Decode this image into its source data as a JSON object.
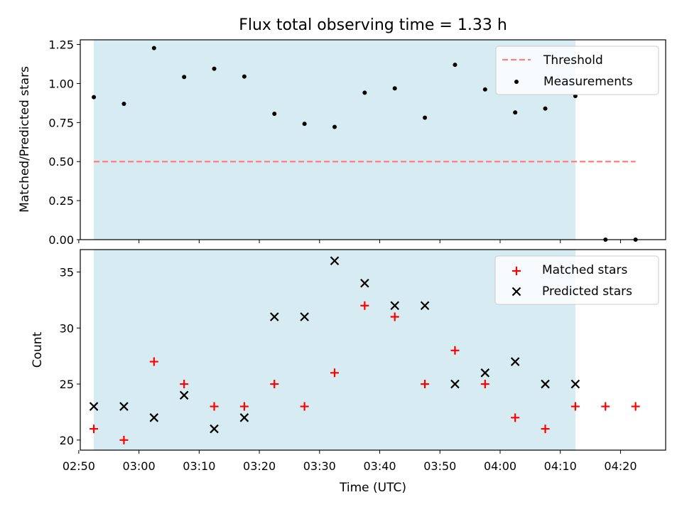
{
  "chart_data": [
    {
      "type": "scatter",
      "title": "Flux total observing time = 1.33 h",
      "ylabel": "Matched/Predicted stars",
      "xlabel": "",
      "ylim": [
        0,
        1.28
      ],
      "yticks": [
        0.0,
        0.25,
        0.5,
        0.75,
        1.0,
        1.25
      ],
      "ytick_labels": [
        "0.00",
        "0.25",
        "0.50",
        "0.75",
        "1.00",
        "1.25"
      ],
      "shaded_interval": [
        "02:52:30",
        "04:12:30"
      ],
      "legend": "upper right",
      "series": [
        {
          "name": "Threshold",
          "kind": "dashed-line",
          "color": "#ff7f7f",
          "x": [
            "02:52:30",
            "04:22:30"
          ],
          "y": [
            0.5,
            0.5
          ]
        },
        {
          "name": "Measurements",
          "kind": "points",
          "color": "#000000",
          "x": [
            "02:52:30",
            "02:57:30",
            "03:02:30",
            "03:07:30",
            "03:12:30",
            "03:17:30",
            "03:22:30",
            "03:27:30",
            "03:32:30",
            "03:37:30",
            "03:42:30",
            "03:47:30",
            "03:52:30",
            "03:57:30",
            "04:02:30",
            "04:07:30",
            "04:12:30",
            "04:17:30",
            "04:22:30"
          ],
          "y": [
            0.913,
            0.87,
            1.227,
            1.042,
            1.095,
            1.045,
            0.806,
            0.742,
            0.722,
            0.941,
            0.969,
            0.781,
            1.12,
            0.962,
            0.815,
            0.84,
            0.92,
            0.0,
            0.0
          ]
        }
      ]
    },
    {
      "type": "scatter",
      "title": "",
      "xlabel": "Time (UTC)",
      "ylabel": "Count",
      "ylim": [
        19.1,
        37.0
      ],
      "yticks": [
        20,
        25,
        30,
        35
      ],
      "ytick_labels": [
        "20",
        "25",
        "30",
        "35"
      ],
      "xlim": [
        "02:50:15",
        "04:27:30"
      ],
      "xticks": [
        "02:50",
        "03:00",
        "03:10",
        "03:20",
        "03:30",
        "03:40",
        "03:50",
        "04:00",
        "04:10",
        "04:20"
      ],
      "shaded_interval": [
        "02:52:30",
        "04:12:30"
      ],
      "legend": "upper right",
      "series": [
        {
          "name": "Matched stars",
          "marker": "+",
          "color": "#ff0000",
          "x": [
            "02:52:30",
            "02:57:30",
            "03:02:30",
            "03:07:30",
            "03:12:30",
            "03:17:30",
            "03:22:30",
            "03:27:30",
            "03:32:30",
            "03:37:30",
            "03:42:30",
            "03:47:30",
            "03:52:30",
            "03:57:30",
            "04:02:30",
            "04:07:30",
            "04:12:30",
            "04:17:30",
            "04:22:30"
          ],
          "y": [
            21,
            20,
            27,
            25,
            23,
            23,
            25,
            23,
            26,
            32,
            31,
            25,
            28,
            25,
            22,
            21,
            23,
            23,
            23
          ]
        },
        {
          "name": "Predicted stars",
          "marker": "x",
          "color": "#000000",
          "x": [
            "02:52:30",
            "02:57:30",
            "03:02:30",
            "03:07:30",
            "03:12:30",
            "03:17:30",
            "03:22:30",
            "03:27:30",
            "03:32:30",
            "03:37:30",
            "03:42:30",
            "03:47:30",
            "03:52:30",
            "03:57:30",
            "04:02:30",
            "04:07:30",
            "04:12:30"
          ],
          "y": [
            23,
            23,
            22,
            24,
            21,
            22,
            31,
            31,
            36,
            34,
            32,
            32,
            25,
            26,
            27,
            25,
            25
          ]
        }
      ]
    }
  ],
  "colors": {
    "shade": "#add8e6",
    "threshold": "#ff7f7f",
    "matched": "#ff0000",
    "predicted": "#000000"
  }
}
